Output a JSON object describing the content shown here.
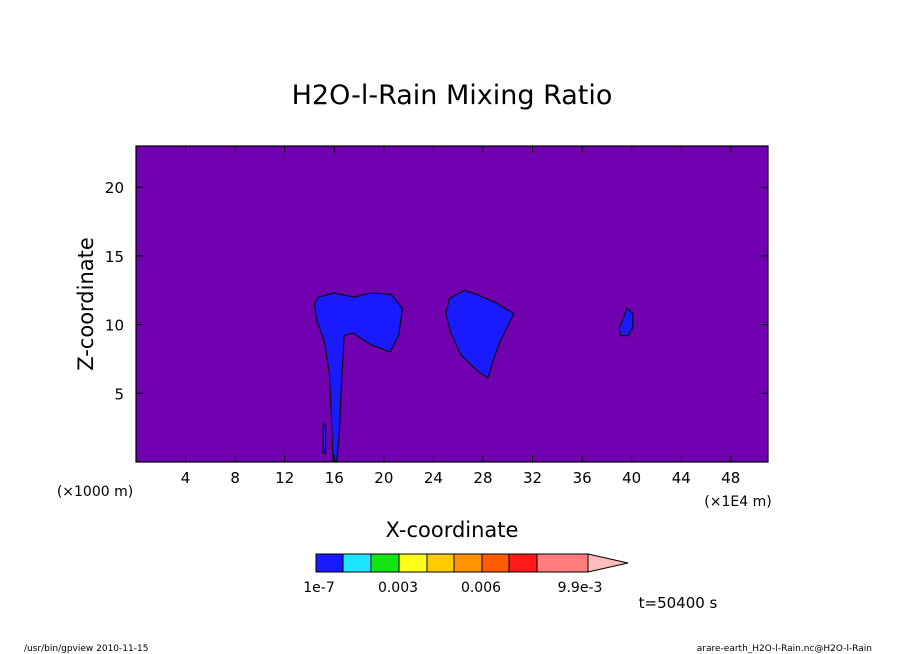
{
  "chart_data": {
    "type": "heatmap",
    "title": "H2O-l-Rain Mixing Ratio",
    "xlabel": "X-coordinate",
    "ylabel": "Z-coordinate",
    "xlim": [
      0,
      51
    ],
    "ylim": [
      0,
      23
    ],
    "x_ticks": [
      "4",
      "8",
      "12",
      "16",
      "20",
      "24",
      "28",
      "32",
      "36",
      "40",
      "44",
      "48"
    ],
    "x_tick_values": [
      4,
      8,
      12,
      16,
      20,
      24,
      28,
      32,
      36,
      40,
      44,
      48
    ],
    "y_ticks": [
      "5",
      "10",
      "15",
      "20"
    ],
    "y_tick_values": [
      5,
      10,
      15,
      20
    ],
    "y_unit": "(×1000 m)",
    "x_unit": "(×1E4 m)",
    "background_color": "#7000b0",
    "regions": [
      {
        "name": "cloud-a",
        "points": [
          [
            14.7,
            12.0
          ],
          [
            16.0,
            12.3
          ],
          [
            17.6,
            12.0
          ],
          [
            19.0,
            12.3
          ],
          [
            20.6,
            12.2
          ],
          [
            21.5,
            11.2
          ],
          [
            21.2,
            9.2
          ],
          [
            20.5,
            8.0
          ],
          [
            18.8,
            8.6
          ],
          [
            17.5,
            9.4
          ],
          [
            16.8,
            9.2
          ],
          [
            16.6,
            6.0
          ],
          [
            16.4,
            2.0
          ],
          [
            16.2,
            0.1
          ],
          [
            15.9,
            0.1
          ],
          [
            15.8,
            2.5
          ],
          [
            15.6,
            6.5
          ],
          [
            15.2,
            8.8
          ],
          [
            14.6,
            10.2
          ],
          [
            14.4,
            11.5
          ]
        ]
      },
      {
        "name": "cloud-b",
        "points": [
          [
            25.3,
            11.9
          ],
          [
            26.5,
            12.5
          ],
          [
            27.5,
            12.2
          ],
          [
            29.0,
            11.6
          ],
          [
            30.5,
            10.8
          ],
          [
            30.0,
            9.9
          ],
          [
            29.4,
            8.8
          ],
          [
            28.9,
            7.6
          ],
          [
            28.4,
            6.1
          ],
          [
            27.6,
            6.6
          ],
          [
            26.2,
            7.8
          ],
          [
            25.4,
            9.4
          ],
          [
            25.0,
            10.8
          ]
        ]
      },
      {
        "name": "cloud-c",
        "points": [
          [
            39.6,
            11.2
          ],
          [
            40.1,
            10.8
          ],
          [
            40.1,
            9.8
          ],
          [
            39.7,
            9.2
          ],
          [
            39.1,
            9.2
          ],
          [
            39.0,
            9.8
          ],
          [
            39.3,
            10.4
          ]
        ]
      },
      {
        "name": "streak",
        "points": [
          [
            15.1,
            2.8
          ],
          [
            15.3,
            2.6
          ],
          [
            15.3,
            0.6
          ],
          [
            15.1,
            0.7
          ]
        ]
      }
    ],
    "colorbar": {
      "colors": [
        "#1a1aff",
        "#1ae6ff",
        "#14e614",
        "#ffff1a",
        "#ffcc00",
        "#ff9400",
        "#ff5c00",
        "#ff1a1a",
        "#ff7d7d",
        "#ffbcbc"
      ],
      "labels": [
        "1e-7",
        "0.003",
        "0.006",
        "9.9e-3"
      ]
    }
  },
  "annotations": {
    "time": "t=50400 s",
    "footer_left": "/usr/bin/gpview  2010-11-15",
    "footer_right": "arare-earth_H2O-l-Rain.nc@H2O-l-Rain"
  }
}
